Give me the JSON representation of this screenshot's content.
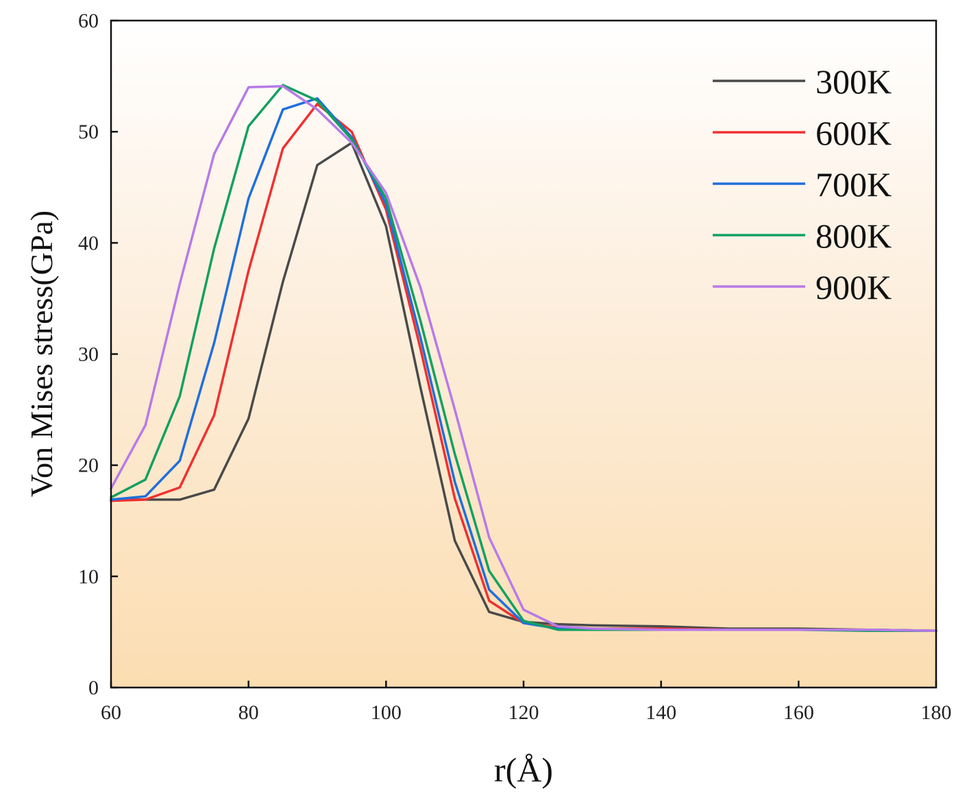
{
  "chart_data": {
    "type": "line",
    "title": "",
    "xlabel": "r(Å)",
    "ylabel": "Von Mises stress(GPa)",
    "xlim": [
      60,
      180
    ],
    "ylim": [
      0,
      60
    ],
    "xticks": [
      60,
      80,
      100,
      120,
      140,
      160,
      180
    ],
    "yticks": [
      0,
      10,
      20,
      30,
      40,
      50,
      60
    ],
    "grid": false,
    "legend_position": "top-right",
    "background": "gradient white-to-peach",
    "x": [
      60,
      65,
      70,
      75,
      80,
      85,
      90,
      95,
      100,
      105,
      110,
      115,
      120,
      125,
      130,
      140,
      150,
      160,
      170,
      180
    ],
    "series": [
      {
        "name": "300K",
        "color": "#4a4a4a",
        "values": [
          16.9,
          16.9,
          16.9,
          17.8,
          24.2,
          36.5,
          47.0,
          49.0,
          41.5,
          27.0,
          13.2,
          6.8,
          5.9,
          5.7,
          5.6,
          5.5,
          5.3,
          5.3,
          5.2,
          5.1
        ]
      },
      {
        "name": "600K",
        "color": "#f03030",
        "values": [
          16.8,
          16.9,
          18.0,
          24.5,
          37.5,
          48.5,
          52.5,
          50.0,
          43.0,
          30.5,
          17.0,
          7.8,
          5.8,
          5.4,
          5.3,
          5.3,
          5.2,
          5.2,
          5.2,
          5.1
        ]
      },
      {
        "name": "700K",
        "color": "#1f6fdc",
        "values": [
          16.9,
          17.2,
          20.4,
          31.0,
          44.0,
          52.0,
          53.0,
          49.5,
          43.5,
          31.5,
          18.5,
          8.8,
          5.8,
          5.3,
          5.3,
          5.2,
          5.2,
          5.2,
          5.2,
          5.1
        ]
      },
      {
        "name": "800K",
        "color": "#12a060",
        "values": [
          17.1,
          18.7,
          26.2,
          39.5,
          50.5,
          54.2,
          52.8,
          49.3,
          44.0,
          33.0,
          21.0,
          10.5,
          6.0,
          5.2,
          5.2,
          5.2,
          5.2,
          5.2,
          5.1,
          5.1
        ]
      },
      {
        "name": "900K",
        "color": "#b77ae8",
        "values": [
          17.9,
          23.6,
          36.3,
          48.0,
          54.0,
          54.1,
          52.0,
          49.0,
          44.5,
          36.0,
          25.0,
          13.5,
          7.0,
          5.5,
          5.3,
          5.2,
          5.2,
          5.2,
          5.2,
          5.1
        ]
      }
    ]
  }
}
